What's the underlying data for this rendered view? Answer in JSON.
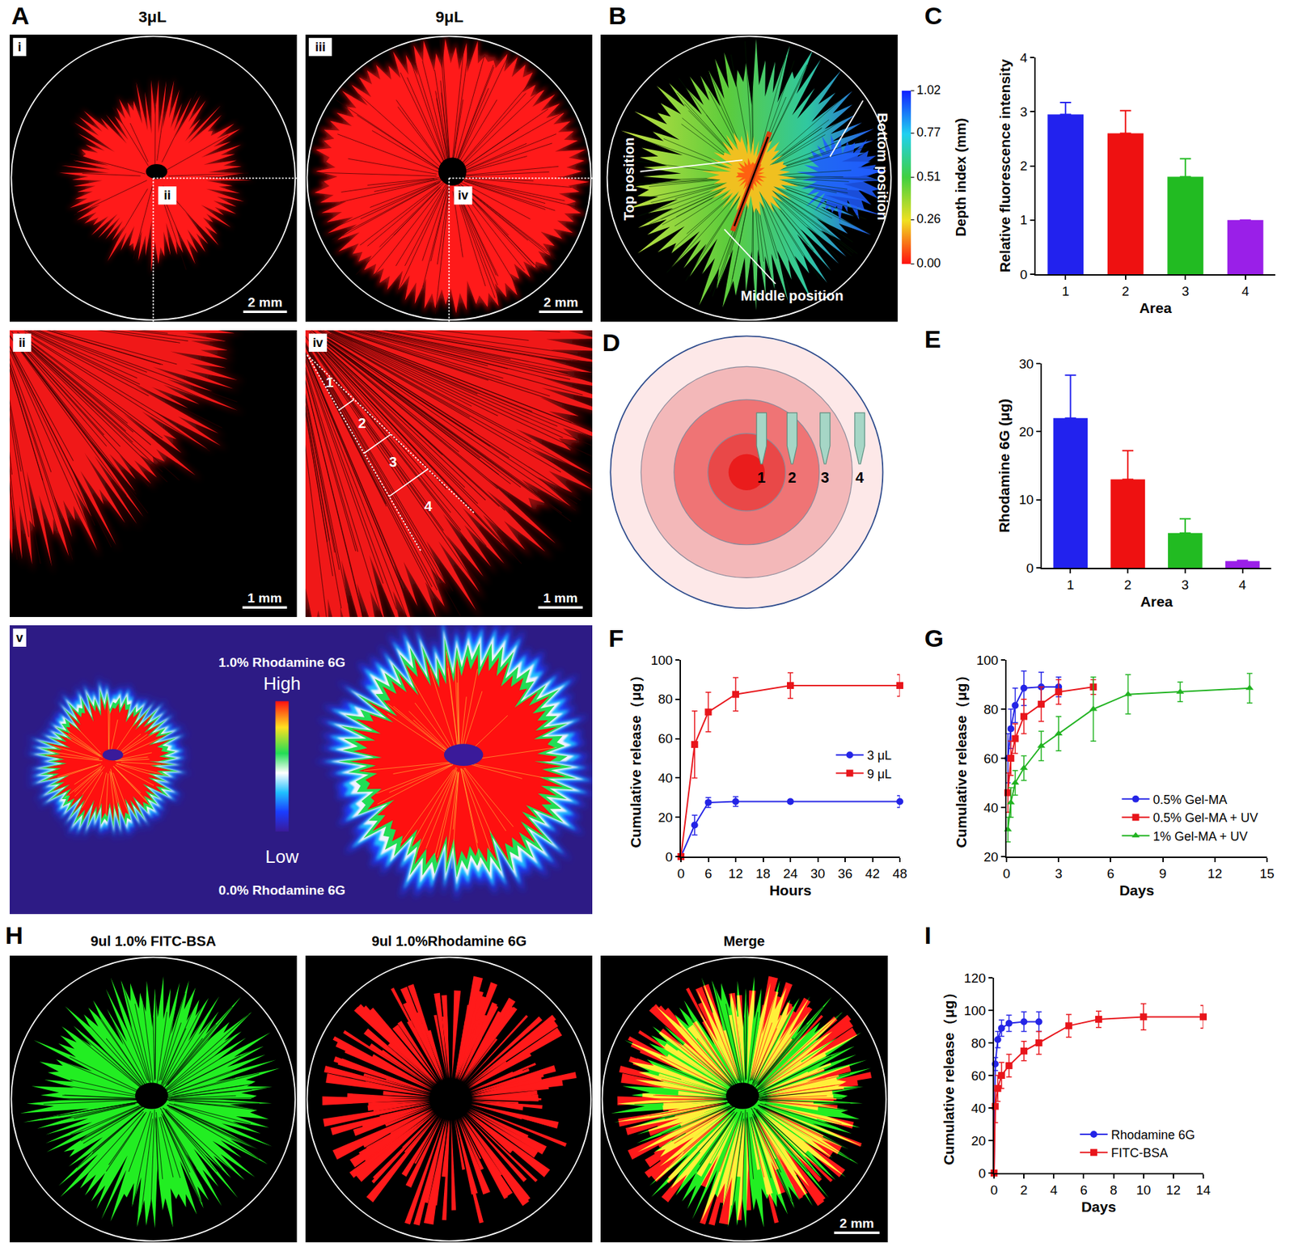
{
  "panel_labels": [
    "A",
    "B",
    "C",
    "D",
    "E",
    "F",
    "G",
    "H",
    "I"
  ],
  "images": {
    "A": {
      "columns": [
        "3μL",
        "9μL"
      ],
      "i": {
        "label": "i",
        "inset": "ii",
        "scale_bar": "2 mm"
      },
      "iii": {
        "label": "iii",
        "inset": "iv",
        "scale_bar": "2 mm"
      },
      "ii": {
        "label": "ii",
        "scale_bar": "1 mm"
      },
      "iv": {
        "label": "iv",
        "scale_bar": "1 mm",
        "areas": [
          "1",
          "2",
          "3",
          "4"
        ]
      },
      "v": {
        "label": "v",
        "top": "1.0% Rhodamine 6G",
        "high": "High",
        "low": "Low",
        "bottom": "0.0% Rhodamine 6G"
      }
    },
    "B": {
      "positions": [
        "Top position",
        "Bottom position",
        "Middle position"
      ],
      "colorbar": {
        "title": "Depth index (mm)",
        "range": [
          0,
          1.02
        ],
        "ticks": [
          {
            "value": 0,
            "label": "0.00"
          },
          0.26,
          0.51,
          0.77,
          1.02
        ]
      }
    },
    "D": {
      "areas": [
        "1",
        "2",
        "3",
        "4"
      ]
    },
    "H": {
      "titles": [
        "9ul 1.0% FITC-BSA",
        "9ul 1.0%Rhodamine 6G",
        "Merge"
      ],
      "scale_bar": "2 mm"
    }
  },
  "chart_data": [
    {
      "type": "bar",
      "x_label": "Area",
      "y_label": "Relative fluorescence intensity",
      "categories": [
        "1",
        "2",
        "3",
        "4"
      ],
      "values": [
        2.95,
        2.6,
        1.8,
        1.0
      ],
      "errors": [
        0.22,
        0.42,
        0.33,
        0
      ],
      "colors": [
        "#2222ee",
        "#ee1111",
        "#22bb22",
        "#9a1fe8"
      ],
      "ylim": [
        0,
        4
      ],
      "yticks": [
        0,
        1,
        2,
        3,
        4
      ],
      "grid": false
    },
    {
      "type": "bar",
      "x_label": "Area",
      "y_label": "Rhodamine 6G (μg)",
      "categories": [
        "1",
        "2",
        "3",
        "4"
      ],
      "values": [
        22,
        13,
        5.1,
        1.0
      ],
      "errors": [
        6.3,
        4.2,
        2.1,
        0.1
      ],
      "colors": [
        "#2222ee",
        "#ee1111",
        "#22bb22",
        "#9a1fe8"
      ],
      "ylim": [
        0,
        30
      ],
      "yticks": [
        0,
        10,
        20,
        30
      ],
      "grid": false
    },
    {
      "type": "line",
      "x_label": "Hours",
      "y_label": "Cumulative release（μg）",
      "xlim": [
        0,
        48
      ],
      "xticks": [
        0,
        6,
        12,
        18,
        24,
        30,
        36,
        42,
        48
      ],
      "ylim": [
        0,
        100
      ],
      "yticks": [
        0,
        20,
        40,
        60,
        80,
        100
      ],
      "grid": false,
      "legend": "right",
      "series": [
        {
          "name": "3 μL",
          "color": "#2424e6",
          "marker": "circle",
          "x": [
            0,
            3,
            6,
            12,
            24,
            48
          ],
          "values": [
            0,
            16,
            27.5,
            28,
            28,
            28
          ],
          "errors": [
            0,
            5,
            2.5,
            2.5,
            1,
            3
          ]
        },
        {
          "name": "9 μL",
          "color": "#e8151b",
          "marker": "square",
          "x": [
            0,
            3,
            6,
            12,
            24,
            48
          ],
          "values": [
            0,
            57,
            73.5,
            82.5,
            87,
            87
          ],
          "errors": [
            0,
            17,
            10,
            8.5,
            6.5,
            5.5
          ]
        }
      ]
    },
    {
      "type": "line",
      "x_label": "Days",
      "y_label": "Cumulative release（μg）",
      "xlim": [
        0,
        15
      ],
      "xticks": [
        0,
        3,
        6,
        9,
        12,
        15
      ],
      "ylim": [
        20,
        100
      ],
      "yticks": [
        20,
        40,
        60,
        80,
        100
      ],
      "grid": false,
      "legend": "lower right",
      "series": [
        {
          "name": "0.5% Gel-MA",
          "color": "#2424e6",
          "marker": "circle",
          "x": [
            0.08,
            0.25,
            0.5,
            1,
            2,
            3
          ],
          "values": [
            60,
            72,
            81.5,
            88.5,
            89,
            89
          ],
          "errors": [
            10,
            8,
            7,
            7,
            6,
            4
          ]
        },
        {
          "name": "0.5% Gel-MA + UV",
          "color": "#e8151b",
          "marker": "square",
          "x": [
            0.08,
            0.25,
            0.5,
            1,
            2,
            3,
            5
          ],
          "values": [
            46,
            60,
            68,
            77,
            82,
            87,
            89
          ],
          "errors": [
            8,
            7,
            6,
            7,
            7,
            5,
            3
          ]
        },
        {
          "name": "1% Gel-MA + UV",
          "color": "#21b321",
          "marker": "triangle",
          "x": [
            0.08,
            0.25,
            0.5,
            1,
            2,
            3,
            5,
            7,
            10,
            14
          ],
          "values": [
            31,
            42,
            50,
            56,
            65,
            70,
            80,
            86,
            87,
            88.5
          ],
          "errors": [
            5,
            6,
            5,
            5,
            6,
            7,
            13,
            8,
            4,
            6
          ]
        }
      ]
    },
    {
      "type": "line",
      "x_label": "Days",
      "y_label": "Cumulative release（μg）",
      "xlim": [
        0,
        14
      ],
      "xticks": [
        0,
        2,
        4,
        6,
        8,
        10,
        12,
        14
      ],
      "ylim": [
        0,
        120
      ],
      "yticks": [
        0,
        20,
        40,
        60,
        80,
        100,
        120
      ],
      "grid": false,
      "legend": "lower right",
      "series": [
        {
          "name": "Rhodamine 6G",
          "color": "#2424e6",
          "marker": "circle",
          "x": [
            0,
            0.08,
            0.25,
            0.5,
            1,
            2,
            3
          ],
          "values": [
            0,
            67,
            82,
            89,
            92,
            93,
            93
          ],
          "errors": [
            0,
            4,
            5,
            5,
            5,
            6,
            6
          ]
        },
        {
          "name": "FITC-BSA",
          "color": "#e8151b",
          "marker": "square",
          "x": [
            0,
            0.08,
            0.25,
            0.5,
            1,
            2,
            3,
            5,
            7,
            10,
            14
          ],
          "values": [
            0,
            41,
            52,
            60,
            66,
            75,
            80,
            90.5,
            94.5,
            96,
            96
          ],
          "errors": [
            0,
            10,
            8,
            8,
            7,
            6,
            7,
            7,
            5,
            8,
            7
          ]
        }
      ]
    }
  ]
}
